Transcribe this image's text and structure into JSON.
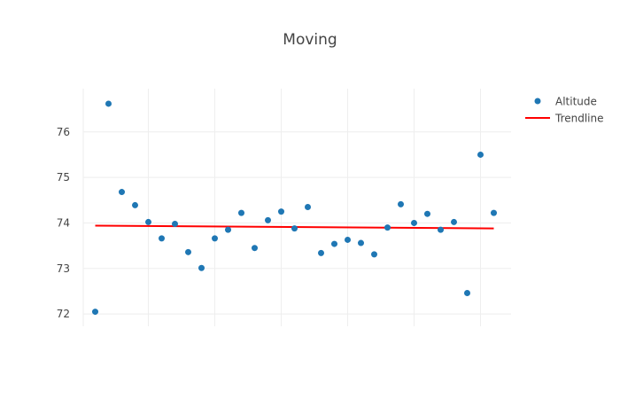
{
  "chart_data": {
    "type": "scatter",
    "title": "Moving",
    "xlabel": "",
    "ylabel": "",
    "x": [
      1,
      2,
      3,
      4,
      5,
      6,
      7,
      8,
      9,
      10,
      11,
      12,
      13,
      14,
      15,
      16,
      17,
      18,
      19,
      20,
      21,
      22,
      23,
      24,
      25,
      26,
      27,
      28,
      29,
      30,
      31
    ],
    "xlim": [
      0.1,
      32.3
    ],
    "ylim": [
      71.73,
      76.95
    ],
    "yticks": [
      72,
      73,
      74,
      75,
      76
    ],
    "x_gridlines": [
      5,
      10,
      15,
      20,
      25,
      30
    ],
    "grid": true,
    "legend_position": "top-right",
    "series": [
      {
        "name": "Altitude",
        "mode": "markers",
        "color": "#1f77b4",
        "values": [
          72.05,
          76.62,
          74.68,
          74.39,
          74.02,
          73.66,
          73.98,
          73.36,
          73.01,
          73.66,
          73.85,
          74.22,
          73.45,
          74.06,
          74.25,
          73.88,
          74.35,
          73.34,
          73.54,
          73.63,
          73.56,
          73.31,
          73.9,
          74.41,
          74.0,
          74.2,
          73.85,
          74.02,
          72.46,
          75.5,
          74.22
        ]
      },
      {
        "name": "Trendline",
        "mode": "line",
        "color": "#ff0000",
        "x": [
          1,
          31
        ],
        "values": [
          73.94,
          73.88
        ]
      }
    ]
  }
}
